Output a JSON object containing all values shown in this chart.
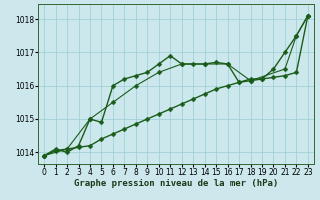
{
  "xlabel": "Graphe pression niveau de la mer (hPa)",
  "background_color": "#cce8ec",
  "grid_color": "#99ccd4",
  "line_color": "#1a5c1a",
  "spine_color": "#336633",
  "xlim": [
    -0.5,
    23.5
  ],
  "ylim": [
    1013.65,
    1018.45
  ],
  "yticks": [
    1014,
    1015,
    1016,
    1017,
    1018
  ],
  "xticks": [
    0,
    1,
    2,
    3,
    4,
    5,
    6,
    7,
    8,
    9,
    10,
    11,
    12,
    13,
    14,
    15,
    16,
    17,
    18,
    19,
    20,
    21,
    22,
    23
  ],
  "tick_fontsize": 5.5,
  "xlabel_fontsize": 6.5,
  "series": [
    {
      "x": [
        0,
        1,
        2,
        3,
        4,
        5,
        6,
        7,
        8,
        9,
        10,
        11,
        12,
        13,
        14,
        15,
        16,
        17,
        18,
        19,
        20,
        21,
        22,
        23
      ],
      "y": [
        1013.9,
        1014.1,
        1014.0,
        1014.2,
        1015.0,
        1014.9,
        1016.0,
        1016.2,
        1016.3,
        1016.4,
        1016.65,
        1016.9,
        1016.65,
        1016.65,
        1016.65,
        1016.7,
        1016.65,
        1016.1,
        1016.2,
        1016.2,
        1016.5,
        1017.0,
        1017.5,
        1018.1
      ],
      "linewidth": 1.0
    },
    {
      "x": [
        0,
        1,
        2,
        3,
        4,
        5,
        6,
        7,
        8,
        9,
        10,
        11,
        12,
        13,
        14,
        15,
        16,
        17,
        18,
        19,
        20,
        21,
        22,
        23
      ],
      "y": [
        1013.9,
        1014.05,
        1014.1,
        1014.15,
        1014.2,
        1014.4,
        1014.55,
        1014.7,
        1014.85,
        1015.0,
        1015.15,
        1015.3,
        1015.45,
        1015.6,
        1015.75,
        1015.9,
        1016.0,
        1016.1,
        1016.15,
        1016.2,
        1016.25,
        1016.3,
        1016.4,
        1018.1
      ],
      "linewidth": 1.0
    },
    {
      "x": [
        0,
        2,
        4,
        6,
        8,
        10,
        12,
        14,
        16,
        18,
        21,
        22,
        23
      ],
      "y": [
        1013.9,
        1014.1,
        1015.0,
        1015.5,
        1016.0,
        1016.4,
        1016.65,
        1016.65,
        1016.65,
        1016.15,
        1016.5,
        1017.5,
        1018.1
      ],
      "linewidth": 0.8
    }
  ]
}
